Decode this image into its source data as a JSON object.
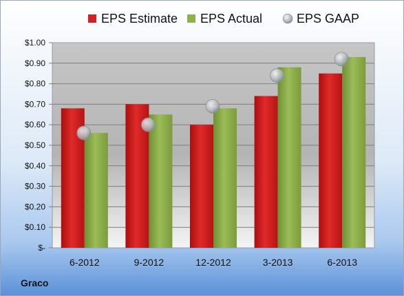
{
  "chart_data": {
    "type": "bar",
    "categories": [
      "6-2012",
      "9-2012",
      "12-2012",
      "3-2013",
      "6-2013"
    ],
    "series": [
      {
        "name": "EPS Estimate",
        "kind": "bar",
        "color": "#d42020",
        "values": [
          0.68,
          0.7,
          0.6,
          0.74,
          0.85
        ]
      },
      {
        "name": "EPS Actual",
        "kind": "bar",
        "color": "#8fb04a",
        "values": [
          0.56,
          0.65,
          0.68,
          0.88,
          0.93
        ]
      },
      {
        "name": "EPS GAAP",
        "kind": "marker",
        "color": "#b8bcc2",
        "values": [
          0.56,
          0.6,
          0.69,
          0.84,
          0.92
        ]
      }
    ],
    "ylim": [
      0,
      1.0
    ],
    "yticks": [
      0,
      0.1,
      0.2,
      0.3,
      0.4,
      0.5,
      0.6,
      0.7,
      0.8,
      0.9,
      1.0
    ],
    "ytick_labels": [
      "$-",
      "$0.10",
      "$0.20",
      "$0.30",
      "$0.40",
      "$0.50",
      "$0.60",
      "$0.70",
      "$0.80",
      "$0.90",
      "$1.00"
    ],
    "grid": true,
    "legend_position": "top"
  },
  "footer_label": "Graco"
}
